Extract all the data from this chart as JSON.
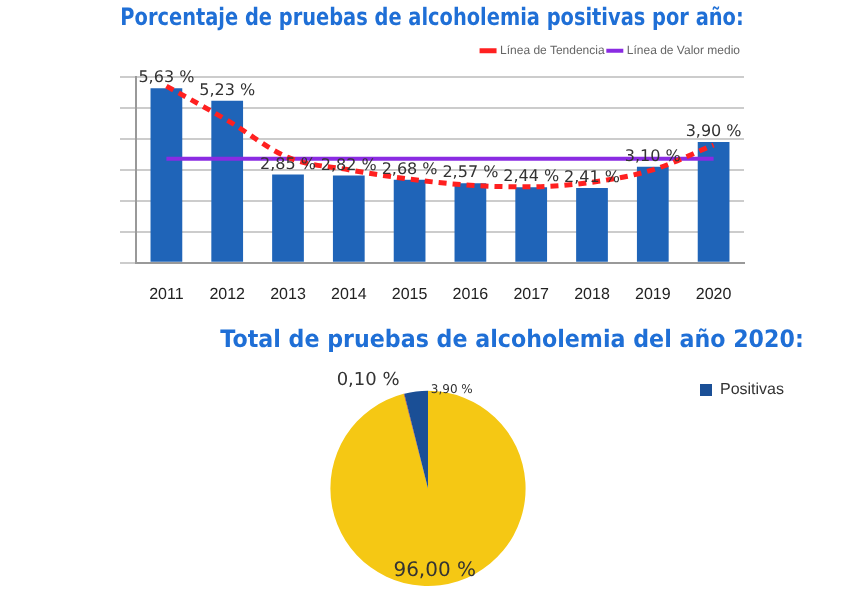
{
  "chart_data": [
    {
      "type": "bar",
      "title": "Porcentaje de pruebas de alcoholemia positivas por año:",
      "categories": [
        "2011",
        "2012",
        "2013",
        "2014",
        "2015",
        "2016",
        "2017",
        "2018",
        "2019",
        "2020"
      ],
      "series": [
        {
          "color": "#1f64b8",
          "values": [
            5.63,
            5.23,
            2.85,
            2.82,
            2.68,
            2.57,
            2.44,
            2.41,
            3.1,
            3.9
          ],
          "value_labels": [
            "5,63 %",
            "5,23 %",
            "2,85 %",
            "2,82 %",
            "2,68 %",
            "2,57 %",
            "2,44 %",
            "2,41 %",
            "3,10 %",
            "3,90 %"
          ]
        },
        {
          "type": "line",
          "name": "Línea de Tendencia",
          "color": "#ff2020",
          "line_style": "dashed",
          "marker": "none",
          "values": [
            5.7,
            4.6,
            3.4,
            3.0,
            2.7,
            2.5,
            2.45,
            2.6,
            3.0,
            3.8
          ]
        }
      ],
      "ref_lines": [
        {
          "axis": "y",
          "value": 3.36,
          "label": "Línea de Valor medio",
          "color": "#8a2be2"
        }
      ],
      "ylim": [
        0,
        6
      ],
      "yticks": [
        {
          "value": 0,
          "label": null
        },
        {
          "value": 1,
          "label": null
        },
        {
          "value": 2,
          "label": null
        },
        {
          "value": 3,
          "label": null
        },
        {
          "value": 4,
          "label": null
        },
        {
          "value": 5,
          "label": null
        },
        {
          "value": 6,
          "label": null
        }
      ],
      "tick_labels": "x",
      "grid": "y",
      "legend": "top right"
    },
    {
      "type": "pie",
      "title": "Total de pruebas de alcoholemia del año 2020:",
      "categories": [
        null,
        null,
        "Positivas"
      ],
      "values": [
        96.0,
        0.1,
        3.9
      ],
      "colors": [
        "#f5c814",
        "#b0280e",
        "#1a4f96"
      ],
      "value_labels": [
        "96,00 %",
        "0,10 %",
        "3,90 %"
      ],
      "legend": "right"
    }
  ]
}
